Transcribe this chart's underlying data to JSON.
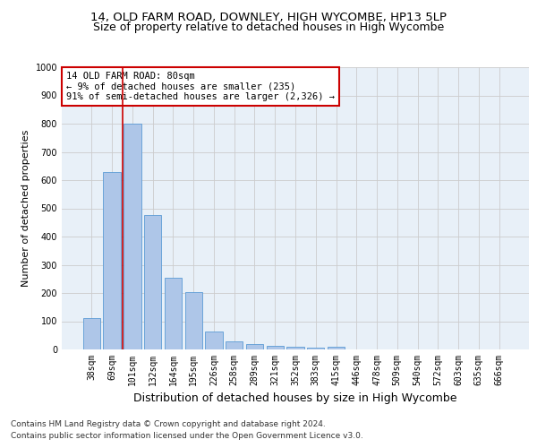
{
  "title_line1": "14, OLD FARM ROAD, DOWNLEY, HIGH WYCOMBE, HP13 5LP",
  "title_line2": "Size of property relative to detached houses in High Wycombe",
  "xlabel": "Distribution of detached houses by size in High Wycombe",
  "ylabel": "Number of detached properties",
  "footer_line1": "Contains HM Land Registry data © Crown copyright and database right 2024.",
  "footer_line2": "Contains public sector information licensed under the Open Government Licence v3.0.",
  "categories": [
    "38sqm",
    "69sqm",
    "101sqm",
    "132sqm",
    "164sqm",
    "195sqm",
    "226sqm",
    "258sqm",
    "289sqm",
    "321sqm",
    "352sqm",
    "383sqm",
    "415sqm",
    "446sqm",
    "478sqm",
    "509sqm",
    "540sqm",
    "572sqm",
    "603sqm",
    "635sqm",
    "666sqm"
  ],
  "values": [
    110,
    628,
    800,
    475,
    253,
    202,
    63,
    28,
    20,
    14,
    10,
    5,
    10,
    0,
    0,
    0,
    0,
    0,
    0,
    0,
    0
  ],
  "bar_color": "#aec6e8",
  "bar_edge_color": "#5b9bd5",
  "vline_x": 1.5,
  "vline_color": "#cc0000",
  "annotation_box_text": "14 OLD FARM ROAD: 80sqm\n← 9% of detached houses are smaller (235)\n91% of semi-detached houses are larger (2,326) →",
  "annotation_box_color": "#cc0000",
  "annotation_box_fill": "#ffffff",
  "ylim": [
    0,
    1000
  ],
  "yticks": [
    0,
    100,
    200,
    300,
    400,
    500,
    600,
    700,
    800,
    900,
    1000
  ],
  "grid_color": "#cccccc",
  "bg_color": "#e8f0f8",
  "title1_fontsize": 9.5,
  "title2_fontsize": 9,
  "xlabel_fontsize": 9,
  "ylabel_fontsize": 8,
  "tick_fontsize": 7,
  "annot_fontsize": 7.5,
  "footer_fontsize": 6.5
}
